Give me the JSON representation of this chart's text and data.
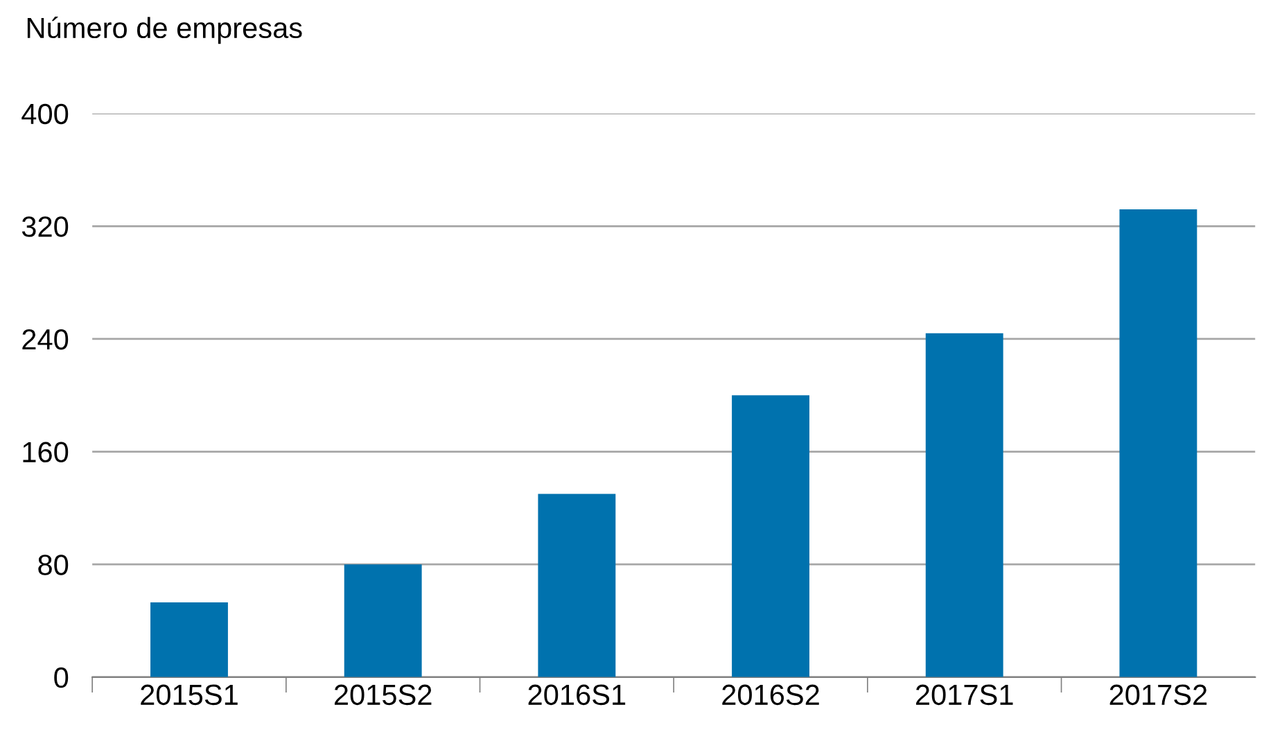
{
  "chart_data": {
    "type": "bar",
    "ylabel": "Número de empresas",
    "categories": [
      "2015S1",
      "2015S2",
      "2016S1",
      "2016S2",
      "2017S1",
      "2017S2"
    ],
    "values": [
      53,
      80,
      130,
      200,
      244,
      332
    ],
    "color": "#0072ae",
    "ylim": [
      0,
      400
    ],
    "yticks": [
      0,
      80,
      160,
      240,
      320,
      400
    ],
    "grid": "y"
  }
}
